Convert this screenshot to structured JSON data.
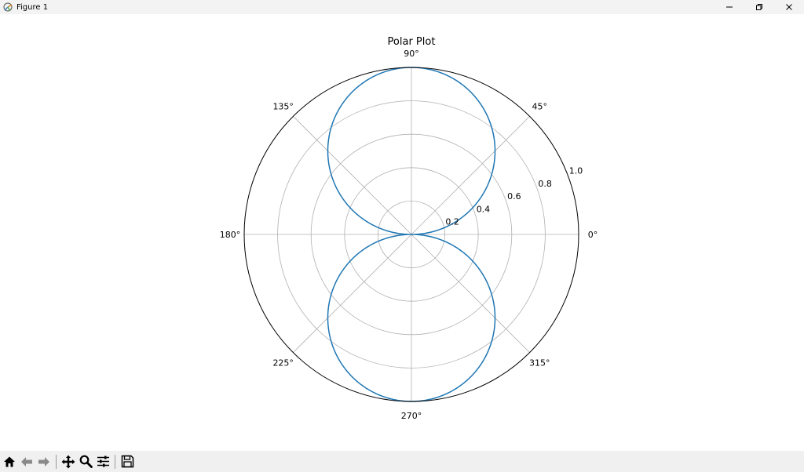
{
  "window": {
    "title": "Figure 1",
    "icon": "matplotlib-figure-icon",
    "controls": [
      "minimize-icon",
      "restore-icon",
      "close-icon"
    ]
  },
  "toolbar": {
    "buttons": [
      {
        "name": "home-button",
        "icon": "home-icon"
      },
      {
        "name": "back-button",
        "icon": "arrow-left-icon"
      },
      {
        "name": "forward-button",
        "icon": "arrow-right-icon"
      },
      {
        "name": "pan-button",
        "icon": "move-arrows-icon"
      },
      {
        "name": "zoom-button",
        "icon": "magnifier-icon"
      },
      {
        "name": "configure-subplots-button",
        "icon": "sliders-icon"
      },
      {
        "name": "save-button",
        "icon": "floppy-disk-icon"
      }
    ]
  },
  "chart_data": {
    "type": "line",
    "projection": "polar",
    "title": "Polar Plot",
    "theta_tick_labels": [
      "0°",
      "45°",
      "90°",
      "135°",
      "180°",
      "225°",
      "270°",
      "315°"
    ],
    "r_tick_labels": [
      "0.2",
      "0.4",
      "0.6",
      "0.8",
      "1.0"
    ],
    "r_ticks": [
      0.2,
      0.4,
      0.6,
      0.8,
      1.0
    ],
    "rlim": [
      0,
      1.0
    ],
    "theta_range_deg": [
      0,
      360
    ],
    "grid": true,
    "series": [
      {
        "equation": "r = |sin(theta)|",
        "color": "#1f77b4",
        "theta_deg": [
          0,
          15,
          30,
          45,
          60,
          75,
          90,
          105,
          120,
          135,
          150,
          165,
          180,
          195,
          210,
          225,
          240,
          255,
          270,
          285,
          300,
          315,
          330,
          345,
          360
        ],
        "r": [
          0.0,
          0.259,
          0.5,
          0.707,
          0.866,
          0.966,
          1.0,
          0.966,
          0.866,
          0.707,
          0.5,
          0.259,
          0.0,
          0.259,
          0.5,
          0.707,
          0.866,
          0.966,
          1.0,
          0.966,
          0.866,
          0.707,
          0.5,
          0.259,
          0.0
        ]
      }
    ],
    "colors": {
      "line": "#1f77b4",
      "grid": "#b0b0b0",
      "spine": "#000000",
      "text": "#000000"
    }
  }
}
